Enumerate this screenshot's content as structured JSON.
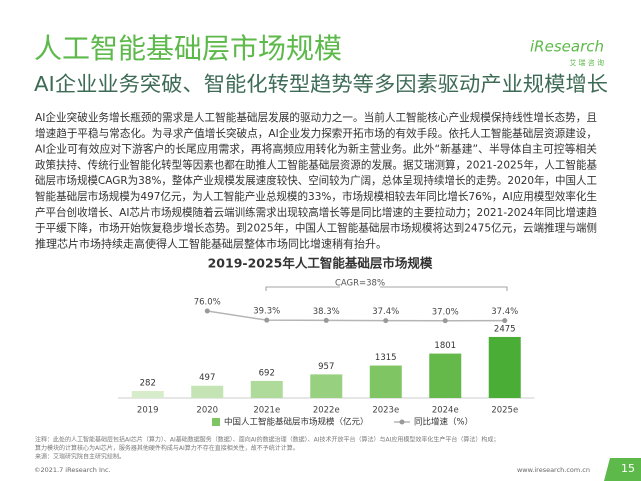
{
  "header": {
    "title": "人工智能基础层市场规模",
    "subtitle": "AI企业业务突破、智能化转型趋势等多因素驱动产业规模增长",
    "logo": "iResearch",
    "logo_sub": "艾 瑞 咨 询"
  },
  "body": {
    "lines": [
      "AI企业突破业务增长瓶颈的需求是人工智能基础层发展的驱动力之一。当前人工智能核心产业规模保持线性增长态势，且",
      "增速趋于平稳与常态化。为寻求产值增长突破点，AI企业发力探索开拓市场的有效手段。依托人工智能基础层资源建设，",
      "AI企业可有效应对下游客户的长尾应用需求，再将高频应用转化为新主营业务。此外“新基建”、半导体自主可控等相关",
      "政策扶持、传统行业智能化转型等因素也都在助推人工智能基础层资源的发展。据艾瑞测算，2021-2025年，人工智能基",
      "础层市场规模CAGR为38%，整体产业规模发展速度较快、空间较为广阔，总体呈现持续增长的走势。2020年，中国人工",
      "智能基础层市场规模为497亿元，为人工智能产业总规模的33%，市场规模相较去年同比增长76%，AI应用模型效率化生",
      "产平台创收增长、AI芯片市场规模随着云端训练需求出现较高增长等是同比增速的主要拉动力；2021-2024年同比增速趋",
      "于平缓下降，市场开始恢复稳步增长态势。到2025年，中国人工智能基础层市场规模将达到2475亿元，云端推理与端侧",
      "推理芯片市场持续走高使得人工智能基础层整体市场同比增速稍有抬升。"
    ]
  },
  "chart_data": {
    "type": "bar",
    "title": "2019-2025年人工智能基础层市场规模",
    "annotation": "CAGR=38%",
    "categories": [
      "2019",
      "2020",
      "2021e",
      "2022e",
      "2023e",
      "2024e",
      "2025e"
    ],
    "ylim": [
      0,
      3000
    ],
    "y2lim": [
      0,
      100
    ],
    "series": [
      {
        "name": "中国人工智能基础层市场规模（亿元）",
        "colors": [
          "#d6ecca",
          "#c4e4b5",
          "#aedb9a",
          "#97d07f",
          "#7fc564",
          "#65b94b",
          "#4aad36"
        ],
        "values": [
          282,
          497,
          692,
          957,
          1315,
          1801,
          2475
        ]
      },
      {
        "name": "同比增速（%）",
        "type": "line",
        "axis": "y2",
        "color": "#b5b5b5",
        "values": [
          null,
          76.0,
          39.3,
          38.3,
          37.4,
          37.0,
          37.4
        ],
        "value_labels": [
          null,
          "76.0%",
          "39.3%",
          "38.3%",
          "37.4%",
          "37.0%",
          "37.4%"
        ]
      }
    ]
  },
  "footer": {
    "notes": [
      "注释：此处的人工智能基础层包括AI芯片（算力）、AI基础数据服务（数据）、面向AI的数据治理（数据）、AI技术开放平台（算法）与AI应用模型效率化生产平台（算法）构成；",
      "算力模块的计算核心为AI芯片，服务器其他硬件构成与AI算力不存在直接相关性，故不予统计计算。",
      "来源：艾瑞研究院自主研究绘制。"
    ],
    "copyright": "©2021.7 iResearch Inc.",
    "url": "www.iresearch.com.cn",
    "page": "15"
  }
}
